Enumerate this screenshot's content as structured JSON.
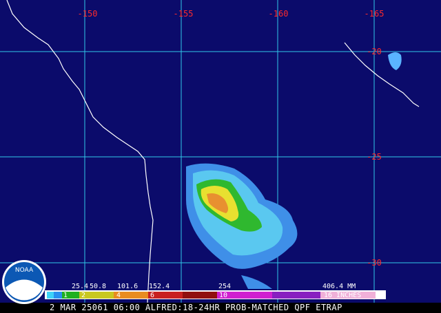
{
  "map": {
    "longitude_labels": [
      "-150",
      "-155",
      "-160",
      "-165"
    ],
    "latitude_labels": [
      "-20",
      "-25",
      "-30"
    ],
    "legend": {
      "mm_labels": [
        "25.4",
        "50.8",
        "101.6",
        "152.4",
        "254",
        "406.4 MM"
      ],
      "inch_labels": [
        "1",
        "2",
        "4",
        "6",
        "10",
        "16 INCHES"
      ]
    },
    "logo": "NOAA",
    "caption": "2 MAR 25061 06:00 ALFRED:18-24HR PROB-MATCHED QPF ETRAP"
  }
}
